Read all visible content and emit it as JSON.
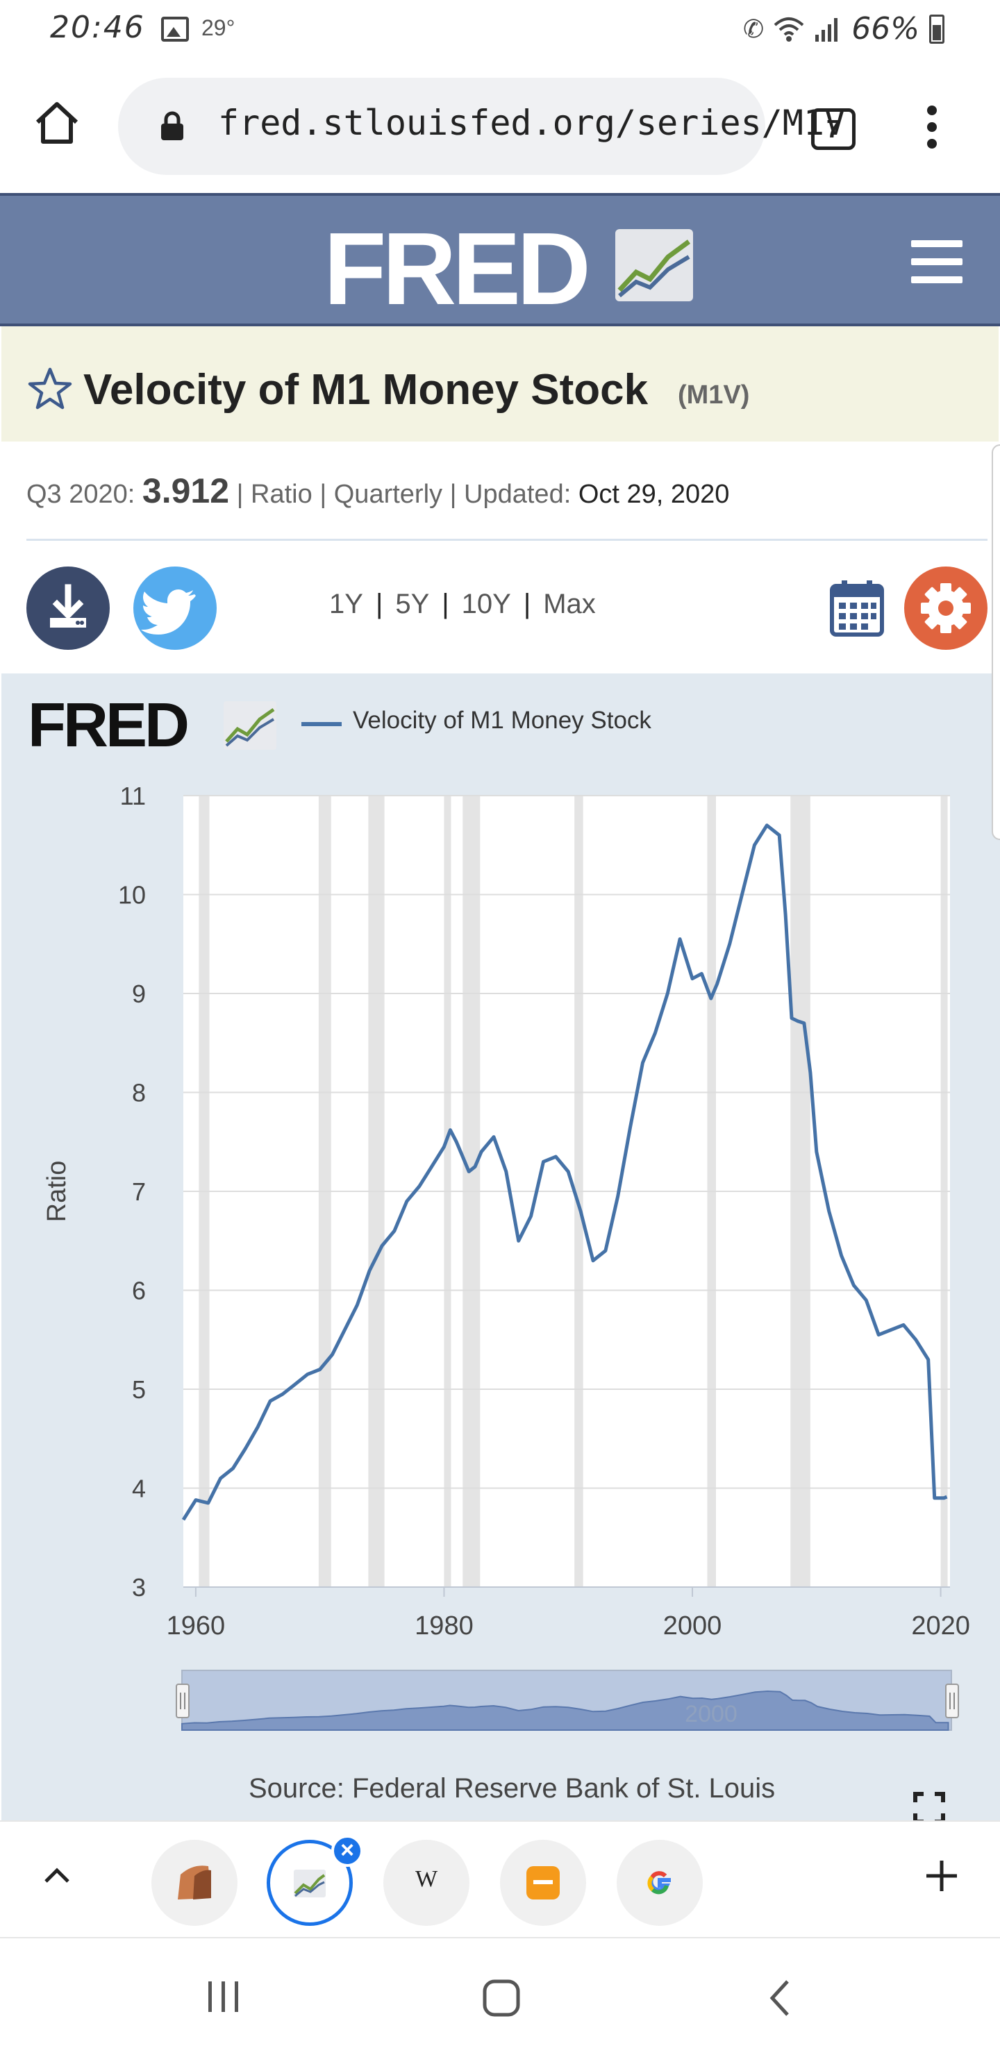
{
  "status_bar": {
    "time": "20:46",
    "temperature": "29°",
    "battery": "66%"
  },
  "browser": {
    "url": "fred.stlouisfed.org/series/M1V",
    "tab_count": "7"
  },
  "series": {
    "title": "Velocity of M1 Money Stock",
    "code": "(M1V)",
    "period_label": "Q3 2020:",
    "latest_value": "3.912",
    "units": "Ratio",
    "frequency": "Quarterly",
    "updated_label": "Updated:",
    "updated_date": "Oct 29, 2020",
    "sep": "|"
  },
  "range_links": [
    "1Y",
    "5Y",
    "10Y",
    "Max"
  ],
  "chart": {
    "legend": "Velocity of M1 Money Stock",
    "source": "Source: Federal Reserve Bank of St. Louis",
    "navigator_label": "2000",
    "colors": {
      "line": "#4572a7",
      "recession": "#e4e4e4",
      "panel": "#e1e9f0",
      "header": "#6a7ea4",
      "title_band": "#f3f3e2",
      "settings": "#e0643f",
      "twitter": "#55acee"
    }
  },
  "chart_data": {
    "type": "line",
    "ylabel": "Ratio",
    "xlabel": "",
    "ylim": [
      3,
      11
    ],
    "xlim": [
      1959,
      2020.75
    ],
    "y_ticks": [
      "3",
      "4",
      "5",
      "6",
      "7",
      "8",
      "9",
      "10",
      "11"
    ],
    "x_ticks": [
      "1960",
      "1980",
      "2000",
      "2020"
    ],
    "grid": true,
    "series": [
      {
        "name": "Velocity of M1 Money Stock",
        "x": [
          1959.0,
          1960.0,
          1961.0,
          1962.0,
          1963.0,
          1964.0,
          1965.0,
          1966.0,
          1967.0,
          1968.0,
          1969.0,
          1970.0,
          1971.0,
          1972.0,
          1973.0,
          1974.0,
          1975.0,
          1976.0,
          1977.0,
          1978.0,
          1979.0,
          1980.0,
          1980.5,
          1981.0,
          1981.5,
          1982.0,
          1982.5,
          1983.0,
          1984.0,
          1985.0,
          1986.0,
          1987.0,
          1988.0,
          1989.0,
          1990.0,
          1991.0,
          1992.0,
          1993.0,
          1994.0,
          1995.0,
          1996.0,
          1997.0,
          1998.0,
          1999.0,
          2000.0,
          2000.75,
          2001.5,
          2002.0,
          2003.0,
          2004.0,
          2005.0,
          2006.0,
          2007.0,
          2007.5,
          2008.0,
          2008.5,
          2009.0,
          2009.5,
          2010.0,
          2011.0,
          2012.0,
          2013.0,
          2014.0,
          2015.0,
          2016.0,
          2017.0,
          2018.0,
          2019.0,
          2019.5,
          2020.0,
          2020.25,
          2020.5
        ],
        "values": [
          3.68,
          3.88,
          3.85,
          4.1,
          4.2,
          4.4,
          4.62,
          4.88,
          4.95,
          5.05,
          5.15,
          5.2,
          5.35,
          5.6,
          5.85,
          6.2,
          6.45,
          6.6,
          6.9,
          7.05,
          7.25,
          7.45,
          7.62,
          7.5,
          7.35,
          7.2,
          7.25,
          7.4,
          7.55,
          7.2,
          6.5,
          6.75,
          7.3,
          7.35,
          7.2,
          6.8,
          6.3,
          6.4,
          6.95,
          7.65,
          8.3,
          8.6,
          9.0,
          9.55,
          9.15,
          9.2,
          8.95,
          9.1,
          9.5,
          10.0,
          10.5,
          10.7,
          10.6,
          9.8,
          8.75,
          8.72,
          8.7,
          8.2,
          7.4,
          6.8,
          6.35,
          6.05,
          5.9,
          5.55,
          5.6,
          5.65,
          5.5,
          5.3,
          3.9,
          3.9,
          3.9,
          3.912
        ]
      }
    ],
    "recessions": [
      [
        1960.25,
        1961.1
      ],
      [
        1969.9,
        1970.9
      ],
      [
        1973.9,
        1975.2
      ],
      [
        1980.0,
        1980.5
      ],
      [
        1981.5,
        1982.9
      ],
      [
        1990.5,
        1991.2
      ],
      [
        2001.2,
        2001.9
      ],
      [
        2007.9,
        2009.5
      ],
      [
        2020.0,
        2020.5
      ]
    ]
  },
  "tab_strip": {
    "wiki_label": "W"
  }
}
